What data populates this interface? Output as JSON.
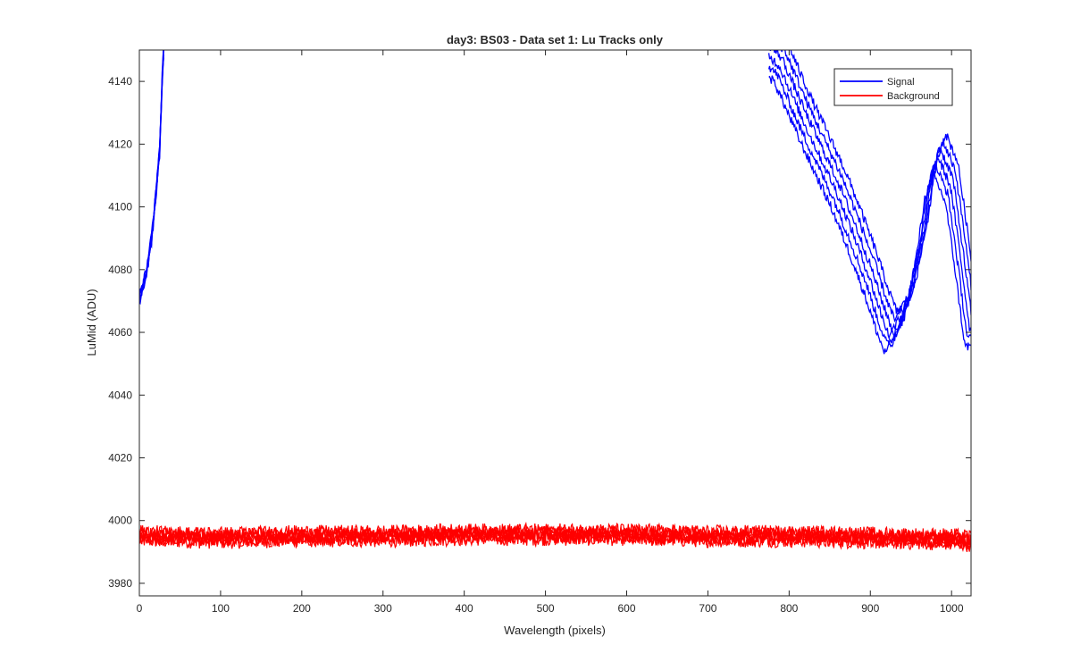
{
  "chart_data": {
    "type": "line",
    "title": "day3: BS03 - Data set 1: Lu Tracks only",
    "xlabel": "Wavelength (pixels)",
    "ylabel": "LuMid (ADU)",
    "xlim": [
      0,
      1024
    ],
    "ylim": [
      3976,
      4150
    ],
    "xticks": [
      0,
      100,
      200,
      300,
      400,
      500,
      600,
      700,
      800,
      900,
      1000
    ],
    "yticks": [
      3980,
      4000,
      4020,
      4040,
      4060,
      4080,
      4100,
      4120,
      4140
    ],
    "grid": false,
    "legend_position": "top-right",
    "series": [
      {
        "name": "Signal",
        "color": "#0000ff",
        "curves": 6,
        "segments": [
          {
            "x": [
              0,
              5,
              10,
              15,
              20,
              25,
              28,
              30
            ],
            "y": [
              4071,
              4075,
              4081,
              4090,
              4103,
              4118,
              4140,
              4150
            ]
          },
          {
            "x": [
              775,
              790,
              800,
              820,
              840,
              860,
              880,
              900,
              915,
              925,
              935,
              950,
              965,
              975,
              985,
              1000,
              1010,
              1024
            ],
            "y": [
              4150,
              4146,
              4140,
              4128,
              4117,
              4106,
              4093,
              4079,
              4067,
              4060,
              4063,
              4072,
              4092,
              4110,
              4117,
              4108,
              4090,
              4062
            ]
          }
        ]
      },
      {
        "name": "Background",
        "color": "#ff0000",
        "curves": 6,
        "x": [
          0,
          100,
          200,
          300,
          400,
          500,
          600,
          700,
          800,
          900,
          1000,
          1024
        ],
        "y": [
          3995,
          3994.5,
          3995,
          3995,
          3995.5,
          3995.5,
          3995.5,
          3995,
          3995,
          3994.5,
          3994,
          3993.5
        ],
        "noise_amplitude": 3
      }
    ]
  }
}
